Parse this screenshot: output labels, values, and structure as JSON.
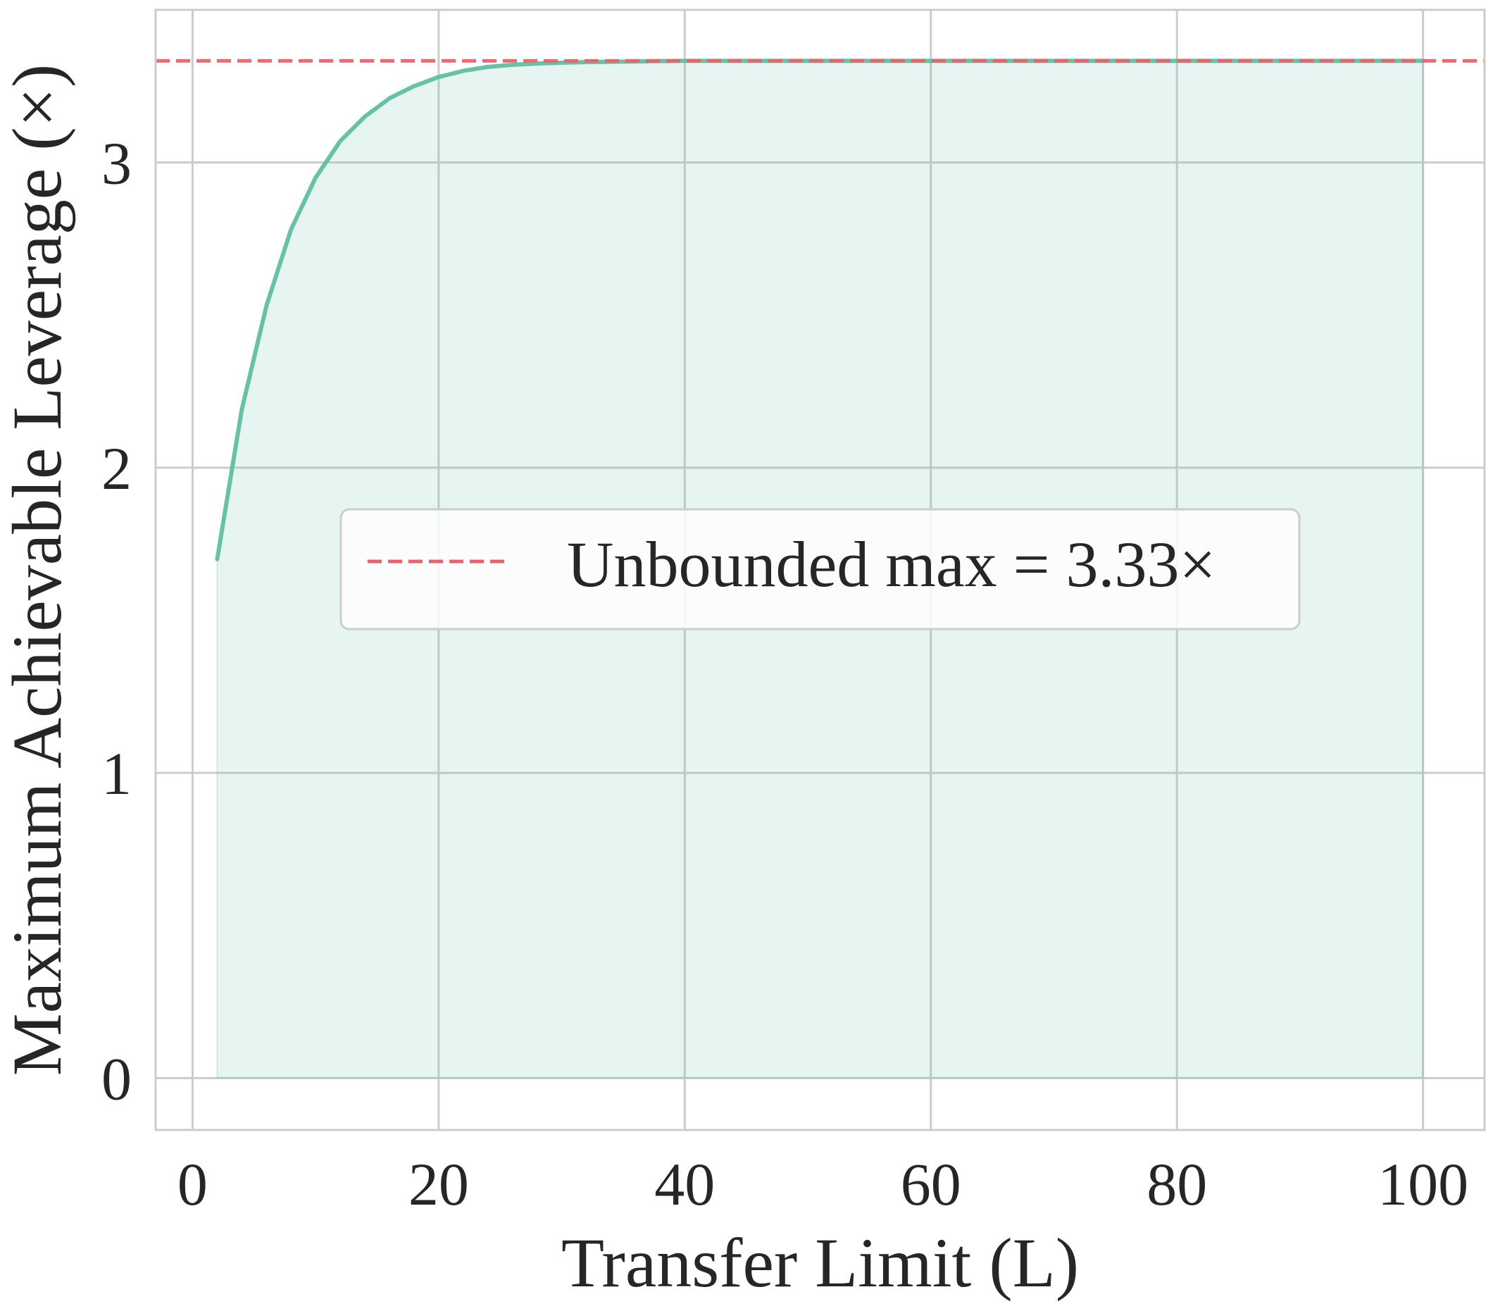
{
  "chart_data": {
    "type": "line",
    "xlabel": "Transfer Limit (L)",
    "ylabel": "Maximum Achievable Leverage (×)",
    "xlim": [
      -3,
      105
    ],
    "ylim": [
      -0.17,
      3.5
    ],
    "xticks": [
      0,
      20,
      40,
      60,
      80,
      100
    ],
    "yticks": [
      0,
      1,
      2,
      3
    ],
    "x_tick_labels": [
      "0",
      "20",
      "40",
      "60",
      "80",
      "100"
    ],
    "y_tick_labels": [
      "0",
      "1",
      "2",
      "3"
    ],
    "grid": true,
    "legend_position": "center",
    "series": [
      {
        "color": "#66c2a5",
        "fill": true,
        "x": [
          2,
          4,
          6,
          8,
          10,
          12,
          14,
          16,
          18,
          20,
          22,
          24,
          26,
          28,
          30,
          32,
          34,
          36,
          38,
          40,
          45,
          50,
          60,
          70,
          80,
          90,
          100
        ],
        "y": [
          1.7,
          2.19,
          2.53,
          2.78,
          2.95,
          3.07,
          3.15,
          3.21,
          3.25,
          3.28,
          3.3,
          3.313,
          3.32,
          3.324,
          3.327,
          3.329,
          3.33,
          3.331,
          3.332,
          3.333,
          3.333,
          3.333,
          3.333,
          3.333,
          3.333,
          3.333,
          3.333
        ]
      }
    ],
    "reference_lines": [
      {
        "name": "Unbounded max = 3.33×",
        "y": 3.333,
        "color": "#f0606a",
        "style": "dashed"
      }
    ]
  }
}
